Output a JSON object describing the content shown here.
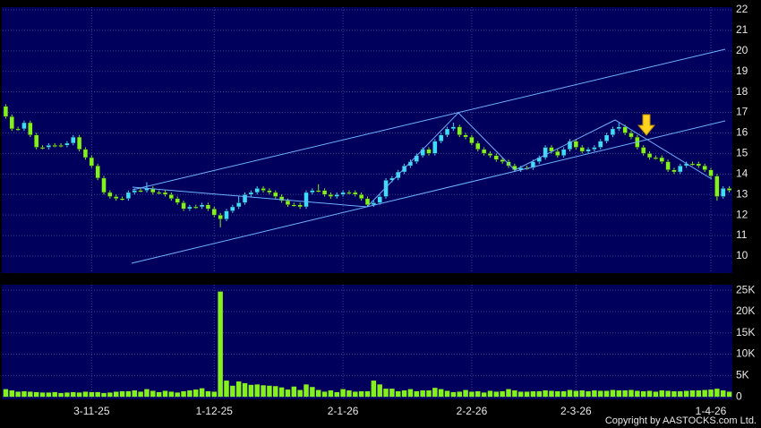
{
  "chart_data": {
    "type": "candlestick",
    "categories": [
      null,
      null,
      null,
      null,
      null,
      null,
      null,
      null,
      null,
      null,
      null,
      null,
      null,
      null,
      "3-11-25",
      null,
      null,
      null,
      null,
      null,
      null,
      null,
      null,
      null,
      null,
      null,
      null,
      null,
      null,
      null,
      null,
      null,
      null,
      null,
      "1-12-25",
      null,
      null,
      null,
      null,
      null,
      null,
      null,
      null,
      null,
      null,
      null,
      null,
      null,
      null,
      null,
      null,
      null,
      null,
      null,
      null,
      "2-1-26",
      null,
      null,
      null,
      null,
      null,
      null,
      null,
      null,
      null,
      null,
      null,
      null,
      null,
      null,
      null,
      null,
      null,
      null,
      null,
      null,
      "2-2-26",
      null,
      null,
      null,
      null,
      null,
      null,
      null,
      null,
      null,
      null,
      null,
      null,
      null,
      null,
      null,
      null,
      "2-3-26",
      null,
      null,
      null,
      null,
      null,
      null,
      null,
      null,
      null,
      null,
      null,
      null,
      null,
      null,
      null,
      null,
      null,
      null,
      null,
      null,
      null,
      "1-4-26",
      null,
      null,
      null
    ],
    "open": [
      17.3,
      16.8,
      16.2,
      16.2,
      16.5,
      15.9,
      15.3,
      15.3,
      15.4,
      15.4,
      15.4,
      15.5,
      15.8,
      15.2,
      14.8,
      14.4,
      13.8,
      13.1,
      12.9,
      12.8,
      12.8,
      13.1,
      13.2,
      13.2,
      13.3,
      13.1,
      13.1,
      13.0,
      12.8,
      12.6,
      12.3,
      12.4,
      12.4,
      12.5,
      12.3,
      12.0,
      11.8,
      12.2,
      12.4,
      12.6,
      13.0,
      13.1,
      13.3,
      13.2,
      13.1,
      12.9,
      12.7,
      12.5,
      12.5,
      12.4,
      13.1,
      13.2,
      13.2,
      13.0,
      12.9,
      13.0,
      13.1,
      13.1,
      13.0,
      12.8,
      12.5,
      12.6,
      12.9,
      13.7,
      13.8,
      14.1,
      14.4,
      14.6,
      14.9,
      15.2,
      15.0,
      15.6,
      15.9,
      16.2,
      16.3,
      15.9,
      15.8,
      15.5,
      15.2,
      15.0,
      14.9,
      14.7,
      14.6,
      14.4,
      14.2,
      14.3,
      14.3,
      14.6,
      14.8,
      15.3,
      15.1,
      14.9,
      15.2,
      15.6,
      15.3,
      15.1,
      15.2,
      15.3,
      15.6,
      15.9,
      16.2,
      16.3,
      16.0,
      15.8,
      15.3,
      15.0,
      14.8,
      14.8,
      14.6,
      14.2,
      14.1,
      14.4,
      14.5,
      14.5,
      14.4,
      14.2,
      13.9,
      12.9,
      13.3
    ],
    "high": [
      17.4,
      16.9,
      16.3,
      16.6,
      16.6,
      16.0,
      15.4,
      15.5,
      15.5,
      15.5,
      15.6,
      15.9,
      15.9,
      15.3,
      14.9,
      14.5,
      13.9,
      13.2,
      13.0,
      12.9,
      13.2,
      13.3,
      13.3,
      13.6,
      13.4,
      13.2,
      13.2,
      13.1,
      12.9,
      12.7,
      12.5,
      12.5,
      12.6,
      12.6,
      12.4,
      12.1,
      12.3,
      12.5,
      12.9,
      13.1,
      13.2,
      13.4,
      13.4,
      13.3,
      13.2,
      13.0,
      12.8,
      12.6,
      12.6,
      13.2,
      13.3,
      13.5,
      13.3,
      13.1,
      13.1,
      13.2,
      13.2,
      13.2,
      13.1,
      12.9,
      12.7,
      13.0,
      13.8,
      13.9,
      14.2,
      14.5,
      14.7,
      15.0,
      15.3,
      15.3,
      15.7,
      16.0,
      16.3,
      16.5,
      16.4,
      16.0,
      15.9,
      15.6,
      15.3,
      15.1,
      15.0,
      14.8,
      14.7,
      14.5,
      14.4,
      14.4,
      14.7,
      14.9,
      15.4,
      15.4,
      15.2,
      15.3,
      15.7,
      15.7,
      15.4,
      15.3,
      15.4,
      15.7,
      16.0,
      16.3,
      16.5,
      16.4,
      16.1,
      15.9,
      15.4,
      15.1,
      14.9,
      14.9,
      14.7,
      14.3,
      14.5,
      14.6,
      14.6,
      14.6,
      14.5,
      14.3,
      14.0,
      13.4,
      13.4
    ],
    "low": [
      16.7,
      16.1,
      16.1,
      16.1,
      15.8,
      15.2,
      15.2,
      15.2,
      15.3,
      15.3,
      15.3,
      15.4,
      15.1,
      14.7,
      14.3,
      13.7,
      13.0,
      12.8,
      12.7,
      12.7,
      12.7,
      13.0,
      13.1,
      13.1,
      13.0,
      13.0,
      12.9,
      12.7,
      12.5,
      12.2,
      12.2,
      12.3,
      12.3,
      12.2,
      11.9,
      11.4,
      11.7,
      12.1,
      12.3,
      12.5,
      12.9,
      13.0,
      13.1,
      13.0,
      12.8,
      12.6,
      12.4,
      12.4,
      12.3,
      12.3,
      13.0,
      13.1,
      12.9,
      12.8,
      12.8,
      12.9,
      13.0,
      12.9,
      12.7,
      12.4,
      12.4,
      12.5,
      12.8,
      13.6,
      13.7,
      14.0,
      14.3,
      14.5,
      14.8,
      14.9,
      14.9,
      15.5,
      15.8,
      16.1,
      15.8,
      15.7,
      15.4,
      15.1,
      14.9,
      14.8,
      14.6,
      14.5,
      14.3,
      14.1,
      14.1,
      14.2,
      14.2,
      14.5,
      14.7,
      15.0,
      14.8,
      14.8,
      15.1,
      15.2,
      15.0,
      15.0,
      15.1,
      15.2,
      15.5,
      15.8,
      16.1,
      15.9,
      15.7,
      15.2,
      14.9,
      14.7,
      14.7,
      14.5,
      14.1,
      14.0,
      14.0,
      14.3,
      14.4,
      14.3,
      14.1,
      13.8,
      12.7,
      12.8,
      13.1
    ],
    "close": [
      16.8,
      16.2,
      16.2,
      16.5,
      15.9,
      15.3,
      15.3,
      15.4,
      15.4,
      15.4,
      15.5,
      15.8,
      15.2,
      14.8,
      14.4,
      13.8,
      13.1,
      12.9,
      12.8,
      12.8,
      13.1,
      13.2,
      13.2,
      13.3,
      13.1,
      13.1,
      13.0,
      12.8,
      12.6,
      12.3,
      12.4,
      12.4,
      12.5,
      12.3,
      12.0,
      11.8,
      12.2,
      12.4,
      12.6,
      13.0,
      13.1,
      13.3,
      13.2,
      13.1,
      12.9,
      12.7,
      12.5,
      12.5,
      12.4,
      13.1,
      13.2,
      13.2,
      13.0,
      12.9,
      13.0,
      13.1,
      13.1,
      13.0,
      12.8,
      12.5,
      12.6,
      12.9,
      13.7,
      13.8,
      14.1,
      14.4,
      14.6,
      14.9,
      15.2,
      15.0,
      15.6,
      15.9,
      16.2,
      16.3,
      15.9,
      15.8,
      15.5,
      15.2,
      15.0,
      14.9,
      14.7,
      14.6,
      14.4,
      14.2,
      14.3,
      14.3,
      14.6,
      14.8,
      15.3,
      15.1,
      14.9,
      15.2,
      15.6,
      15.3,
      15.1,
      15.2,
      15.3,
      15.6,
      15.9,
      16.2,
      16.3,
      16.0,
      15.8,
      15.3,
      15.0,
      14.8,
      14.8,
      14.6,
      14.2,
      14.1,
      14.4,
      14.5,
      14.5,
      14.4,
      14.2,
      13.9,
      12.9,
      13.3,
      13.2
    ],
    "up_color": "#3fdcff",
    "down_color": "#84f01c",
    "ylim": [
      9.17,
      22.13
    ],
    "yticks": [
      10,
      11,
      12,
      13,
      14,
      15,
      16,
      17,
      18,
      19,
      20,
      21,
      22
    ],
    "grid": true,
    "volume": {
      "type": "bar",
      "values": [
        1800,
        1500,
        1200,
        1300,
        1200,
        1100,
        1000,
        1000,
        1100,
        900,
        1000,
        1100,
        1000,
        1200,
        1100,
        1100,
        900,
        1000,
        1200,
        1300,
        1300,
        1500,
        1200,
        1800,
        1400,
        1100,
        1400,
        1200,
        1000,
        1300,
        1500,
        1700,
        2000,
        1300,
        1200,
        24700,
        3800,
        2600,
        3600,
        3200,
        2800,
        2900,
        2700,
        2600,
        2500,
        2200,
        1700,
        2400,
        1600,
        2900,
        2300,
        1600,
        1200,
        1500,
        1100,
        1800,
        1500,
        1200,
        1300,
        1300,
        3800,
        2900,
        1900,
        1900,
        1300,
        1500,
        1800,
        1300,
        1500,
        1500,
        2100,
        1800,
        1400,
        1100,
        1200,
        1600,
        1200,
        1300,
        1000,
        1400,
        1200,
        1300,
        1800,
        1500,
        1200,
        1200,
        1300,
        1300,
        1500,
        1400,
        1300,
        1300,
        1600,
        1400,
        1500,
        1300,
        1500,
        1400,
        1400,
        1600,
        1500,
        1500,
        1600,
        1400,
        1300,
        1400,
        1200,
        1500,
        1400,
        1300,
        1300,
        1400,
        1500,
        1500,
        1600,
        1700,
        1900,
        1500,
        1200
      ],
      "color": "#84f01c",
      "ylim": [
        -600,
        26300
      ],
      "yticks": [
        0,
        {
          "value": 5000,
          "label": "5K"
        },
        {
          "value": 10000,
          "label": "10K"
        },
        {
          "value": 15000,
          "label": "15K"
        },
        {
          "value": 20000,
          "label": "20K"
        },
        {
          "value": 25000,
          "label": "25K"
        }
      ]
    },
    "copyright": "Copyright by AASTOCKS.com Ltd."
  }
}
